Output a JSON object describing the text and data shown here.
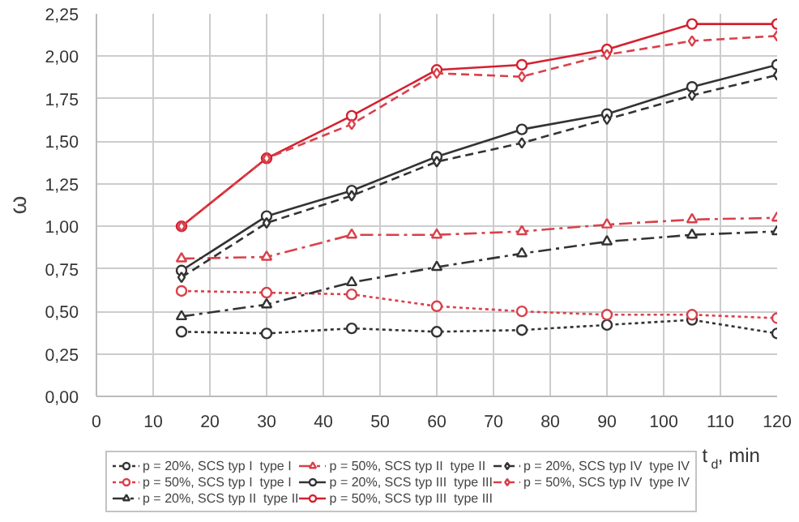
{
  "chart_data": {
    "type": "line",
    "xlabel": "t$_{d}$, min",
    "ylabel": "ω",
    "x": [
      15,
      30,
      45,
      60,
      75,
      90,
      105,
      120
    ],
    "xlim": [
      0,
      120
    ],
    "xticks": [
      0,
      10,
      20,
      30,
      40,
      50,
      60,
      70,
      80,
      90,
      100,
      110,
      120
    ],
    "ylim": [
      0,
      2.25
    ],
    "yticks": [
      {
        "value": 0,
        "label": "0,00"
      },
      {
        "value": 0.25,
        "label": "0,25"
      },
      {
        "value": 0.5,
        "label": "0,50"
      },
      {
        "value": 0.75,
        "label": "0,75"
      },
      {
        "value": 1,
        "label": "1,00"
      },
      {
        "value": 1.25,
        "label": "1,25"
      },
      {
        "value": 1.5,
        "label": "1,50"
      },
      {
        "value": 1.75,
        "label": "1,75"
      },
      {
        "value": 2,
        "label": "2,00"
      },
      {
        "value": 2.25,
        "label": "2,25"
      }
    ],
    "grid": true,
    "legend": "bottom",
    "series": [
      {
        "name": "p = 20%, SCS typ I  type I",
        "color": "#333333",
        "marker": "circle",
        "line_style": "dotted",
        "values": [
          0.38,
          0.37,
          0.4,
          0.38,
          0.39,
          0.42,
          0.45,
          0.37
        ]
      },
      {
        "name": "p = 50%, SCS typ I  type I",
        "color": "#d9404a",
        "marker": "circle",
        "line_style": "dotted",
        "values": [
          0.62,
          0.61,
          0.6,
          0.53,
          0.5,
          0.48,
          0.48,
          0.46
        ]
      },
      {
        "name": "p = 20%, SCS typ II  type II",
        "color": "#333333",
        "marker": "triangle",
        "line_style": "dashdot",
        "values": [
          0.47,
          0.54,
          0.67,
          0.76,
          0.84,
          0.91,
          0.95,
          0.97
        ]
      },
      {
        "name": "p = 50%, SCS typ II  type II",
        "color": "#d9404a",
        "marker": "triangle",
        "line_style": "dashdot",
        "values": [
          0.81,
          0.82,
          0.95,
          0.95,
          0.97,
          1.01,
          1.04,
          1.05
        ]
      },
      {
        "name": "p = 20%, SCS typ III  type III",
        "color": "#333333",
        "marker": "circle",
        "line_style": "solid",
        "values": [
          0.74,
          1.06,
          1.21,
          1.41,
          1.57,
          1.66,
          1.82,
          1.95
        ]
      },
      {
        "name": "p = 50%, SCS typ III  type III",
        "color": "#d42030",
        "marker": "circle",
        "line_style": "solid",
        "values": [
          1.0,
          1.4,
          1.65,
          1.92,
          1.95,
          2.04,
          2.19,
          2.19
        ]
      },
      {
        "name": "p = 20%, SCS typ IV  type IV",
        "color": "#333333",
        "marker": "diamond",
        "line_style": "dashed",
        "values": [
          0.7,
          1.02,
          1.18,
          1.38,
          1.49,
          1.63,
          1.77,
          1.89
        ]
      },
      {
        "name": "p = 50%, SCS typ IV  type IV",
        "color": "#d9404a",
        "marker": "diamond",
        "line_style": "dashed",
        "values": [
          1.0,
          1.4,
          1.6,
          1.9,
          1.88,
          2.01,
          2.09,
          2.12
        ]
      }
    ]
  }
}
